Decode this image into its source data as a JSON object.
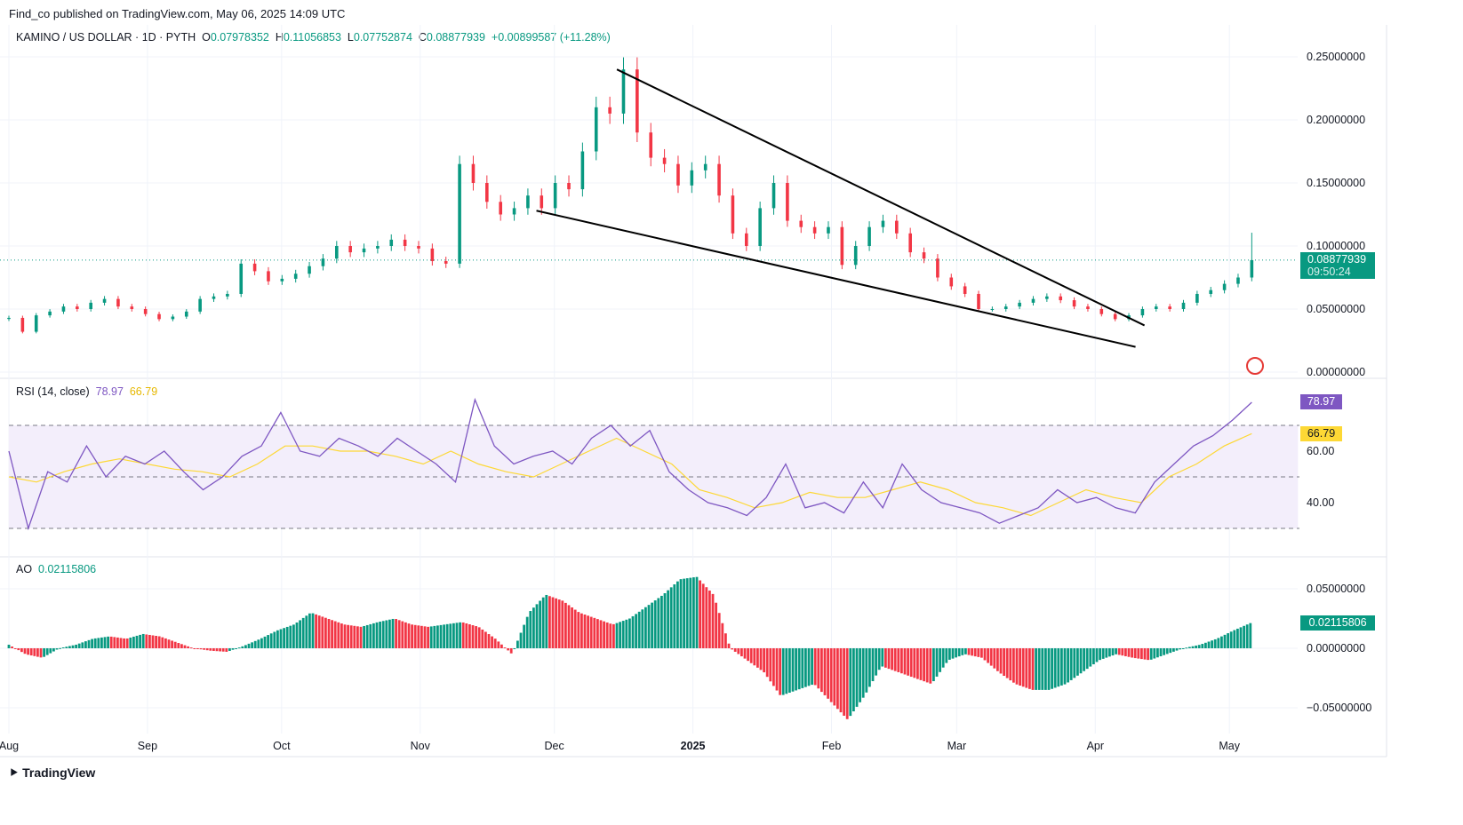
{
  "header": {
    "published": "Find_co published on TradingView.com, May 06, 2025 14:09 UTC",
    "symbol": "KAMINO / US DOLLAR · 1D · PYTH",
    "o_label": "O",
    "o": "0.07978352",
    "h_label": "H",
    "h": "0.11056853",
    "l_label": "L",
    "l": "0.07752874",
    "c_label": "C",
    "c": "0.08877939",
    "change": "+0.00899587 (+11.28%)"
  },
  "price_badge": {
    "value": "0.08877939",
    "countdown": "09:50:24"
  },
  "brand": "TradingView",
  "colors": {
    "up": "#089981",
    "down": "#f23645",
    "rsi": "#7e57c2",
    "rsi_ma": "#fdd835",
    "band": "#f3eefb"
  },
  "chart_data": [
    {
      "type": "candlestick",
      "title": "KAMINO / US DOLLAR · 1D · PYTH",
      "start": "2024-08-01",
      "end": "2025-05-06",
      "closes": [
        0.043,
        0.032,
        0.045,
        0.048,
        0.052,
        0.05,
        0.055,
        0.058,
        0.052,
        0.05,
        0.046,
        0.042,
        0.044,
        0.048,
        0.058,
        0.06,
        0.062,
        0.086,
        0.08,
        0.072,
        0.074,
        0.078,
        0.084,
        0.09,
        0.1,
        0.095,
        0.098,
        0.1,
        0.105,
        0.1,
        0.098,
        0.088,
        0.086,
        0.165,
        0.15,
        0.135,
        0.125,
        0.13,
        0.14,
        0.13,
        0.15,
        0.145,
        0.175,
        0.21,
        0.205,
        0.24,
        0.19,
        0.17,
        0.165,
        0.148,
        0.16,
        0.165,
        0.14,
        0.11,
        0.1,
        0.13,
        0.15,
        0.12,
        0.115,
        0.11,
        0.115,
        0.085,
        0.1,
        0.115,
        0.12,
        0.11,
        0.095,
        0.09,
        0.075,
        0.068,
        0.062,
        0.05,
        0.05,
        0.052,
        0.055,
        0.058,
        0.06,
        0.057,
        0.052,
        0.05,
        0.046,
        0.042,
        0.045,
        0.05,
        0.052,
        0.05,
        0.055,
        0.062,
        0.065,
        0.07,
        0.075,
        0.08877939
      ],
      "y_ticks": [
        "0.25000000",
        "0.20000000",
        "0.15000000",
        "0.10000000",
        "0.05000000",
        "0.00000000"
      ],
      "ylim": [
        0,
        0.25
      ],
      "x_ticks": [
        "Aug",
        "Sep",
        "Oct",
        "Nov",
        "Dec",
        "2025",
        "Feb",
        "Mar",
        "Apr",
        "May"
      ],
      "trendlines": [
        {
          "from": [
            "2024-12-15",
            0.24
          ],
          "to": [
            "2025-04-12",
            0.037
          ]
        },
        {
          "from": [
            "2024-11-27",
            0.128
          ],
          "to": [
            "2025-04-10",
            0.02
          ]
        }
      ]
    },
    {
      "type": "line",
      "title": "RSI (14, close)",
      "value": "78.97",
      "ma_value": "66.79",
      "y_ticks": [
        "60.00",
        "40.00"
      ],
      "bands": [
        30,
        50,
        70
      ],
      "ylim": [
        25,
        85
      ],
      "rsi": [
        60,
        30,
        52,
        48,
        62,
        50,
        58,
        55,
        60,
        52,
        45,
        50,
        58,
        62,
        75,
        60,
        58,
        65,
        62,
        58,
        65,
        60,
        55,
        48,
        80,
        62,
        55,
        58,
        60,
        55,
        65,
        70,
        62,
        68,
        52,
        45,
        40,
        38,
        35,
        42,
        55,
        38,
        40,
        36,
        48,
        38,
        55,
        45,
        40,
        38,
        36,
        32,
        35,
        38,
        45,
        40,
        42,
        38,
        36,
        48,
        55,
        62,
        66,
        72,
        78.97
      ],
      "rsi_ma": [
        50,
        48,
        52,
        55,
        57,
        55,
        53,
        52,
        50,
        55,
        62,
        62,
        60,
        60,
        58,
        55,
        60,
        55,
        52,
        50,
        55,
        60,
        65,
        60,
        55,
        45,
        42,
        38,
        40,
        44,
        42,
        42,
        45,
        48,
        45,
        40,
        38,
        35,
        40,
        45,
        42,
        40,
        50,
        55,
        62,
        66.79
      ]
    },
    {
      "type": "bar",
      "title": "AO",
      "value": "0.02115806",
      "y_ticks": [
        "0.05000000",
        "0.00000000",
        "−0.05000000"
      ],
      "ylim": [
        -0.06,
        0.06
      ],
      "values": [
        0.003,
        -0.005,
        -0.008,
        0.0,
        0.003,
        0.008,
        0.01,
        0.008,
        0.012,
        0.01,
        0.005,
        0.0,
        -0.002,
        -0.003,
        0.002,
        0.008,
        0.015,
        0.02,
        0.03,
        0.025,
        0.02,
        0.018,
        0.022,
        0.025,
        0.02,
        0.018,
        0.02,
        0.022,
        0.018,
        0.008,
        -0.005,
        0.03,
        0.045,
        0.04,
        0.03,
        0.025,
        0.02,
        0.025,
        0.035,
        0.045,
        0.058,
        0.06,
        0.045,
        0.0,
        -0.01,
        -0.02,
        -0.04,
        -0.035,
        -0.03,
        -0.045,
        -0.06,
        -0.04,
        -0.015,
        -0.02,
        -0.025,
        -0.03,
        -0.01,
        -0.005,
        -0.008,
        -0.02,
        -0.03,
        -0.035,
        -0.035,
        -0.03,
        -0.02,
        -0.01,
        -0.005,
        -0.008,
        -0.01,
        -0.005,
        0.0,
        0.003,
        0.008,
        0.015,
        0.02115806
      ]
    }
  ]
}
